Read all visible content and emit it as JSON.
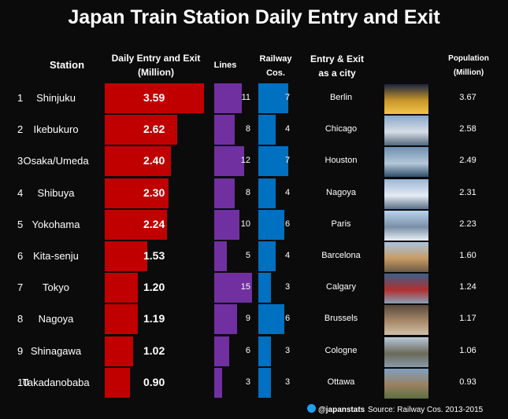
{
  "title": "Japan Train Station Daily Entry and Exit",
  "headers": {
    "station": "Station",
    "entry": "Daily Entry and Exit\n(Million)",
    "lines": "Lines",
    "railway": "Railway\nCos.",
    "city": "Entry & Exit\nas a city",
    "population": "Population\n(Million)"
  },
  "colors": {
    "entry": "#c00000",
    "lines": "#7030a0",
    "railway": "#0070c0",
    "background": "#0b0b0b"
  },
  "chart_data": {
    "type": "table",
    "title": "Japan Train Station Daily Entry and Exit",
    "rows": [
      {
        "rank": "1",
        "station": "Shinjuku",
        "entry": 3.59,
        "entry_label": "3.59",
        "lines": 11,
        "railway": 7,
        "city": "Berlin",
        "population": "3.67",
        "photo_icon": "berlin-gate-photo"
      },
      {
        "rank": "2",
        "station": "Ikebukuro",
        "entry": 2.62,
        "entry_label": "2.62",
        "lines": 8,
        "railway": 4,
        "city": "Chicago",
        "population": "2.58",
        "photo_icon": "chicago-skyline-photo"
      },
      {
        "rank": "3",
        "station": "Osaka/Umeda",
        "entry": 2.4,
        "entry_label": "2.40",
        "lines": 12,
        "railway": 7,
        "city": "Houston",
        "population": "2.49",
        "photo_icon": "houston-skyline-photo"
      },
      {
        "rank": "4",
        "station": "Shibuya",
        "entry": 2.3,
        "entry_label": "2.30",
        "lines": 8,
        "railway": 4,
        "city": "Nagoya",
        "population": "2.31",
        "photo_icon": "nagoya-tower-photo"
      },
      {
        "rank": "5",
        "station": "Yokohama",
        "entry": 2.24,
        "entry_label": "2.24",
        "lines": 10,
        "railway": 6,
        "city": "Paris",
        "population": "2.23",
        "photo_icon": "eiffel-tower-photo"
      },
      {
        "rank": "6",
        "station": "Kita-senju",
        "entry": 1.53,
        "entry_label": "1.53",
        "lines": 5,
        "railway": 4,
        "city": "Barcelona",
        "population": "1.60",
        "photo_icon": "sagrada-familia-photo"
      },
      {
        "rank": "7",
        "station": "Tokyo",
        "entry": 1.2,
        "entry_label": "1.20",
        "lines": 15,
        "railway": 3,
        "city": "Calgary",
        "population": "1.24",
        "photo_icon": "calgary-bridge-photo"
      },
      {
        "rank": "8",
        "station": "Nagoya",
        "entry": 1.19,
        "entry_label": "1.19",
        "lines": 9,
        "railway": 6,
        "city": "Brussels",
        "population": "1.17",
        "photo_icon": "brussels-square-photo"
      },
      {
        "rank": "9",
        "station": "Shinagawa",
        "entry": 1.02,
        "entry_label": "1.02",
        "lines": 6,
        "railway": 3,
        "city": "Cologne",
        "population": "1.06",
        "photo_icon": "cologne-cathedral-photo"
      },
      {
        "rank": "10",
        "station": "Takadanobaba",
        "entry": 0.9,
        "entry_label": "0.90",
        "lines": 3,
        "railway": 3,
        "city": "Ottawa",
        "population": "0.93",
        "photo_icon": "ottawa-parliament-photo"
      }
    ],
    "scales": {
      "entry_max": 3.59,
      "lines_max": 15,
      "railway_max": 7
    }
  },
  "footer": {
    "twitter_icon": "twitter-bird-icon",
    "handle": "@japanstats",
    "source": "Source: Railway Cos. 2013-2015"
  }
}
